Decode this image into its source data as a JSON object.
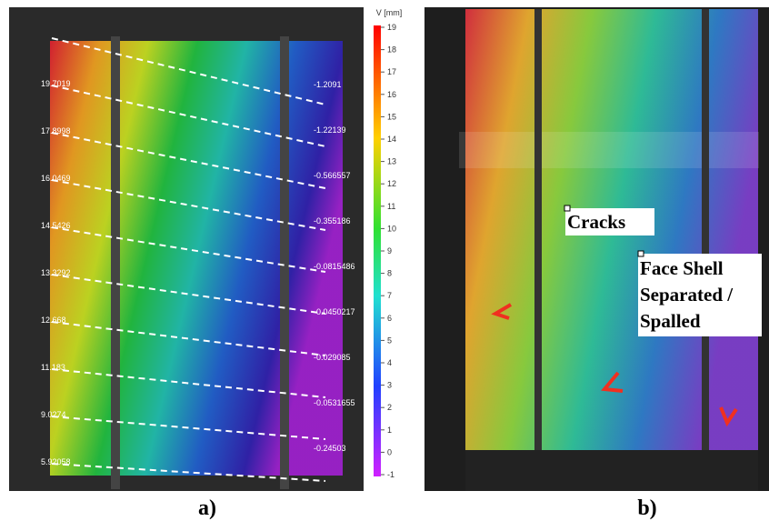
{
  "panel_a": {
    "caption": "a)",
    "colorbar": {
      "title": "V [mm]",
      "ticks": [
        19,
        18,
        17,
        16,
        15,
        14,
        13,
        12,
        11,
        10,
        9,
        8,
        7,
        6,
        5,
        4,
        3,
        2,
        1,
        0,
        -1
      ]
    },
    "left_labels": [
      "19.7019",
      "17.8998",
      "16.0469",
      "14.5426",
      "13.3292",
      "12.668",
      "11.183",
      "9.0274",
      "5.92058"
    ],
    "right_labels": [
      "-1.2091",
      "-1.22139",
      "-0.566557",
      "-0.355186",
      "-0.0815486",
      "-0.0450217",
      "-0.029085",
      "-0.0531655",
      "-0.24503"
    ]
  },
  "panel_b": {
    "caption": "b)",
    "annotation_cracks": "Cracks",
    "annotation_spalled": [
      "Face Shell",
      "Separated /",
      "Spalled"
    ]
  }
}
